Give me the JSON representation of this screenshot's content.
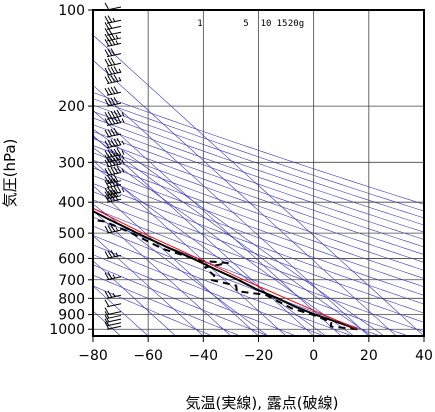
{
  "chart_data": {
    "type": "line",
    "title": "",
    "xlabel": "気温(実線), 露点(破線)",
    "ylabel": "気圧(hPa)",
    "xlim": [
      -80,
      40
    ],
    "ylim": [
      1050,
      100
    ],
    "y_scale": "log",
    "x_ticks": [
      -80,
      -60,
      -40,
      -20,
      0,
      20,
      40
    ],
    "x_tick_labels": [
      "−80",
      "−60",
      "−40",
      "−20",
      "0",
      "20",
      "40"
    ],
    "y_ticks": [
      100,
      200,
      300,
      400,
      500,
      600,
      700,
      800,
      900,
      1000
    ],
    "y_tick_labels": [
      "100",
      "200",
      "300",
      "400",
      "500",
      "600",
      "700",
      "800",
      "900",
      "1000"
    ],
    "mixing_ratio_labels": [
      "1",
      "5",
      "10",
      "15",
      "20g"
    ],
    "mixing_ratios": [
      1,
      5,
      10,
      15,
      20
    ],
    "grid": true,
    "colors": {
      "temperature": "#000000",
      "dewpoint": "#000000",
      "parcel": "#ff0000",
      "guides": "#3333cc",
      "grid": "#444444"
    },
    "series": [
      {
        "key": "temperature",
        "style": "solid",
        "points": [
          [
            18.5,
            1000
          ],
          [
            14,
            950
          ],
          [
            9,
            900
          ],
          [
            5,
            850
          ],
          [
            2,
            800
          ],
          [
            -2,
            750
          ],
          [
            -5,
            700
          ],
          [
            -9,
            650
          ],
          [
            -13,
            600
          ],
          [
            -18,
            550
          ],
          [
            -23,
            500
          ],
          [
            -28,
            450
          ],
          [
            -33,
            400
          ],
          [
            -37,
            350
          ],
          [
            -42,
            300
          ],
          [
            -48,
            250
          ],
          [
            -54,
            220
          ],
          [
            -57,
            200
          ],
          [
            -60,
            180
          ],
          [
            -63,
            160
          ],
          [
            -63,
            145
          ],
          [
            -64,
            130
          ],
          [
            -64,
            120
          ],
          [
            -65,
            110
          ],
          [
            -64,
            105
          ],
          [
            -65,
            100
          ]
        ]
      },
      {
        "key": "dewpoint",
        "style": "dashed",
        "points": [
          [
            18.5,
            1000
          ],
          [
            10,
            980
          ],
          [
            12,
            950
          ],
          [
            8,
            900
          ],
          [
            3,
            860
          ],
          [
            -1,
            780
          ],
          [
            -10,
            760
          ],
          [
            -8,
            730
          ],
          [
            -15,
            700
          ],
          [
            -12,
            680
          ],
          [
            -12,
            640
          ],
          [
            -2,
            620
          ],
          [
            -11,
            610
          ],
          [
            -20,
            560
          ],
          [
            -25,
            500
          ],
          [
            -30,
            460
          ],
          [
            -55,
            420
          ],
          [
            -58,
            380
          ],
          [
            -50,
            360
          ],
          [
            -45,
            350
          ],
          [
            -38,
            340
          ],
          [
            -46,
            310
          ],
          [
            -60,
            300
          ],
          [
            -75,
            300
          ]
        ]
      },
      {
        "key": "parcel",
        "style": "solid",
        "points": [
          [
            18.5,
            1000
          ],
          [
            12,
            900
          ],
          [
            5,
            800
          ],
          [
            -3,
            700
          ],
          [
            -11,
            600
          ],
          [
            -21,
            500
          ],
          [
            -31,
            400
          ],
          [
            -43,
            300
          ],
          [
            -57,
            220
          ],
          [
            -65,
            190
          ],
          [
            -80,
            155
          ]
        ]
      }
    ],
    "wind_barbs": [
      {
        "p": 1000,
        "speed": 10
      },
      {
        "p": 975,
        "speed": 10
      },
      {
        "p": 950,
        "speed": 10
      },
      {
        "p": 925,
        "speed": 10
      },
      {
        "p": 900,
        "speed": 10
      },
      {
        "p": 850,
        "speed": 10
      },
      {
        "p": 800,
        "speed": 15
      },
      {
        "p": 700,
        "speed": 15
      },
      {
        "p": 600,
        "speed": 25
      },
      {
        "p": 500,
        "speed": 25
      },
      {
        "p": 400,
        "speed": 40
      },
      {
        "p": 390,
        "speed": 40
      },
      {
        "p": 380,
        "speed": 45
      },
      {
        "p": 360,
        "speed": 40
      },
      {
        "p": 350,
        "speed": 40
      },
      {
        "p": 330,
        "speed": 45
      },
      {
        "p": 310,
        "speed": 45
      },
      {
        "p": 300,
        "speed": 45
      },
      {
        "p": 290,
        "speed": 45
      },
      {
        "p": 270,
        "speed": 45
      },
      {
        "p": 250,
        "speed": 40
      },
      {
        "p": 230,
        "speed": 45
      },
      {
        "p": 220,
        "speed": 45
      },
      {
        "p": 200,
        "speed": 40
      },
      {
        "p": 185,
        "speed": 40
      },
      {
        "p": 170,
        "speed": 35
      },
      {
        "p": 160,
        "speed": 35
      },
      {
        "p": 150,
        "speed": 30
      },
      {
        "p": 140,
        "speed": 30
      },
      {
        "p": 130,
        "speed": 25
      },
      {
        "p": 125,
        "speed": 25
      },
      {
        "p": 120,
        "speed": 20
      },
      {
        "p": 115,
        "speed": 20
      },
      {
        "p": 110,
        "speed": 15
      },
      {
        "p": 100,
        "speed": 10
      }
    ]
  }
}
